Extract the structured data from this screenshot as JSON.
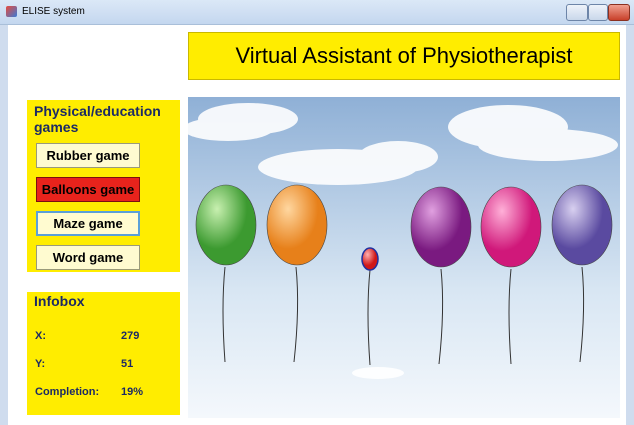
{
  "window": {
    "title": "ELISE system"
  },
  "header": {
    "title": "Virtual Assistant of Physiotherapist"
  },
  "games": {
    "title": "Physical/education games",
    "buttons": [
      "Rubber game",
      "Balloons game",
      "Maze game",
      "Word game"
    ]
  },
  "infobox": {
    "title": "Infobox",
    "rows": [
      [
        "X:",
        "279"
      ],
      [
        "Y:",
        "51"
      ],
      [
        "Completion:",
        "19%"
      ]
    ]
  }
}
